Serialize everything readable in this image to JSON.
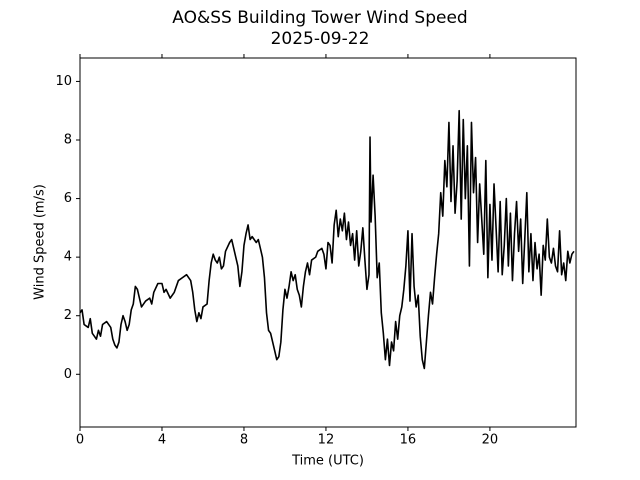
{
  "chart_data": {
    "type": "line",
    "title": "AO&SS Building Tower Wind Speed",
    "subtitle": "2025-09-22",
    "xlabel": "Time (UTC)",
    "ylabel": "Wind Speed (m/s)",
    "xlim": [
      0,
      24.2
    ],
    "ylim": [
      -1.8,
      10.8
    ],
    "xticks": [
      0,
      4,
      8,
      12,
      16,
      20
    ],
    "yticks": [
      0,
      2,
      4,
      6,
      8,
      10
    ],
    "grid": false,
    "series": [
      {
        "name": "Wind Speed",
        "color": "#000000",
        "x": [
          0,
          0.1,
          0.2,
          0.4,
          0.5,
          0.6,
          0.7,
          0.8,
          0.9,
          1.0,
          1.1,
          1.3,
          1.5,
          1.6,
          1.7,
          1.8,
          1.9,
          2.0,
          2.1,
          2.2,
          2.3,
          2.4,
          2.5,
          2.6,
          2.7,
          2.8,
          2.9,
          3.0,
          3.2,
          3.4,
          3.5,
          3.6,
          3.8,
          4.0,
          4.1,
          4.2,
          4.4,
          4.6,
          4.8,
          5.0,
          5.2,
          5.4,
          5.5,
          5.6,
          5.7,
          5.8,
          5.9,
          6.0,
          6.2,
          6.3,
          6.4,
          6.5,
          6.6,
          6.7,
          6.8,
          6.9,
          7.0,
          7.1,
          7.3,
          7.4,
          7.5,
          7.6,
          7.7,
          7.8,
          7.9,
          8.0,
          8.1,
          8.2,
          8.3,
          8.4,
          8.6,
          8.7,
          8.8,
          8.9,
          9.0,
          9.1,
          9.2,
          9.3,
          9.4,
          9.5,
          9.6,
          9.7,
          9.8,
          9.9,
          10.0,
          10.1,
          10.2,
          10.3,
          10.4,
          10.5,
          10.6,
          10.7,
          10.8,
          10.9,
          11.0,
          11.1,
          11.2,
          11.3,
          11.5,
          11.6,
          11.8,
          11.9,
          12.0,
          12.1,
          12.2,
          12.3,
          12.4,
          12.5,
          12.6,
          12.7,
          12.8,
          12.9,
          13.0,
          13.1,
          13.2,
          13.3,
          13.4,
          13.5,
          13.6,
          13.7,
          13.8,
          13.9,
          14.0,
          14.1,
          14.15,
          14.2,
          14.3,
          14.4,
          14.5,
          14.6,
          14.7,
          14.8,
          14.9,
          15.0,
          15.1,
          15.2,
          15.3,
          15.4,
          15.5,
          15.6,
          15.7,
          15.8,
          15.9,
          16.0,
          16.1,
          16.2,
          16.3,
          16.4,
          16.5,
          16.6,
          16.7,
          16.8,
          16.9,
          17.0,
          17.1,
          17.2,
          17.3,
          17.4,
          17.5,
          17.6,
          17.7,
          17.8,
          17.9,
          18.0,
          18.1,
          18.2,
          18.3,
          18.4,
          18.5,
          18.6,
          18.7,
          18.8,
          18.9,
          19.0,
          19.1,
          19.2,
          19.3,
          19.4,
          19.5,
          19.6,
          19.7,
          19.8,
          19.9,
          20.0,
          20.1,
          20.2,
          20.3,
          20.4,
          20.5,
          20.6,
          20.7,
          20.8,
          20.9,
          21.0,
          21.1,
          21.2,
          21.3,
          21.4,
          21.5,
          21.6,
          21.7,
          21.8,
          21.9,
          22.0,
          22.1,
          22.2,
          22.3,
          22.4,
          22.5,
          22.6,
          22.7,
          22.8,
          22.9,
          23.0,
          23.1,
          23.2,
          23.3,
          23.4,
          23.5,
          23.6,
          23.7,
          23.8,
          23.9,
          24.0,
          24.1
        ],
        "values": [
          2.1,
          2.2,
          1.7,
          1.6,
          1.9,
          1.4,
          1.3,
          1.2,
          1.5,
          1.3,
          1.7,
          1.8,
          1.6,
          1.2,
          1.0,
          0.9,
          1.1,
          1.7,
          2.0,
          1.8,
          1.5,
          1.7,
          2.2,
          2.4,
          3.0,
          2.9,
          2.6,
          2.3,
          2.5,
          2.6,
          2.4,
          2.8,
          3.1,
          3.1,
          2.8,
          2.9,
          2.6,
          2.8,
          3.2,
          3.3,
          3.4,
          3.2,
          2.8,
          2.2,
          1.8,
          2.1,
          1.9,
          2.3,
          2.4,
          3.2,
          3.8,
          4.1,
          3.9,
          3.8,
          4.0,
          3.6,
          3.7,
          4.2,
          4.5,
          4.6,
          4.3,
          4.0,
          3.7,
          3.0,
          3.5,
          4.4,
          4.8,
          5.1,
          4.6,
          4.7,
          4.5,
          4.6,
          4.3,
          4.0,
          3.3,
          2.1,
          1.5,
          1.4,
          1.1,
          0.8,
          0.5,
          0.6,
          1.1,
          2.2,
          2.9,
          2.6,
          3.0,
          3.5,
          3.2,
          3.4,
          2.9,
          2.7,
          2.3,
          3.0,
          3.5,
          3.8,
          3.4,
          3.9,
          4.0,
          4.2,
          4.3,
          4.1,
          3.6,
          4.5,
          4.4,
          3.8,
          5.1,
          5.6,
          4.7,
          5.3,
          4.9,
          5.5,
          4.6,
          5.2,
          4.4,
          4.8,
          3.9,
          4.9,
          3.7,
          4.2,
          5.0,
          3.9,
          2.9,
          3.4,
          8.1,
          5.2,
          6.8,
          5.4,
          3.3,
          3.8,
          2.1,
          1.4,
          0.5,
          1.2,
          0.3,
          1.1,
          0.8,
          1.8,
          1.2,
          2.0,
          2.3,
          2.9,
          3.7,
          4.9,
          2.5,
          4.8,
          3.0,
          2.3,
          2.7,
          1.3,
          0.5,
          0.2,
          1.1,
          2.0,
          2.8,
          2.4,
          3.3,
          4.1,
          4.8,
          6.2,
          5.4,
          7.3,
          6.4,
          8.6,
          5.9,
          7.8,
          5.5,
          6.6,
          9.0,
          5.3,
          8.7,
          6.0,
          7.8,
          3.7,
          8.6,
          6.2,
          7.4,
          4.5,
          6.5,
          5.3,
          4.1,
          7.3,
          3.3,
          5.8,
          3.9,
          6.5,
          5.0,
          3.5,
          5.9,
          3.4,
          4.4,
          6.0,
          3.7,
          5.5,
          3.2,
          4.8,
          5.9,
          4.2,
          5.3,
          3.1,
          4.6,
          6.2,
          3.5,
          4.8,
          3.2,
          4.5,
          3.6,
          4.1,
          2.7,
          4.4,
          3.9,
          5.3,
          4.0,
          3.8,
          4.3,
          3.7,
          3.5,
          4.9,
          3.4,
          3.8,
          3.2,
          4.2,
          3.8,
          4.1,
          4.2
        ]
      }
    ]
  }
}
